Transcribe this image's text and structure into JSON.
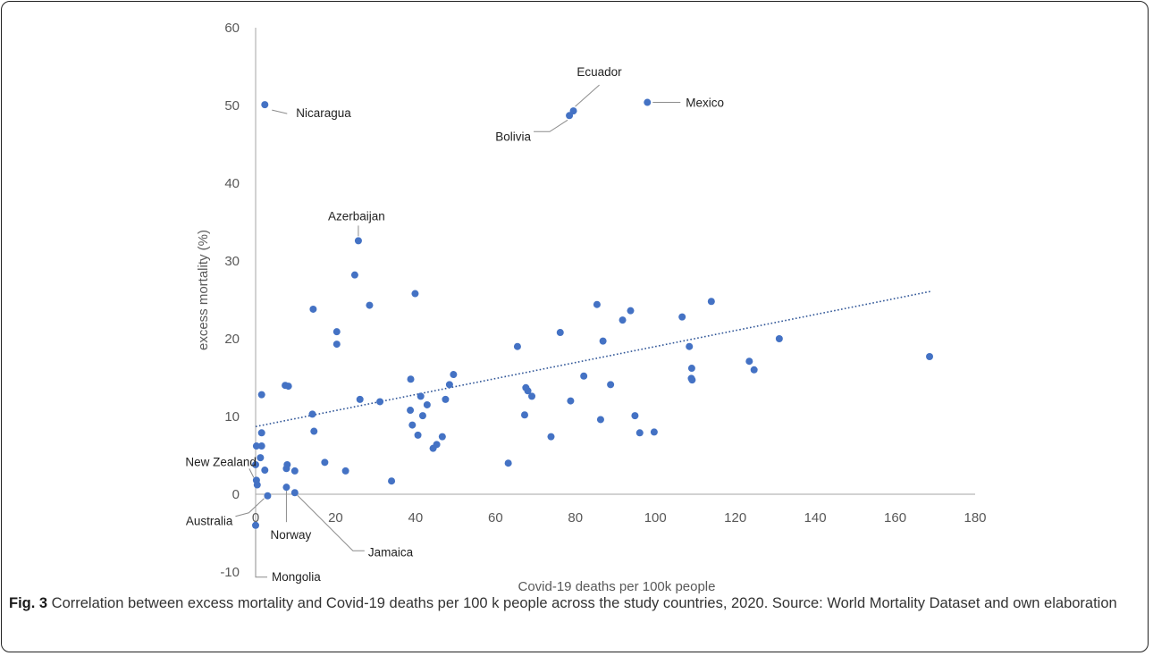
{
  "chart_data": {
    "type": "scatter",
    "title": "",
    "xlabel": "Covid-19 deaths per 100k people",
    "ylabel": "excess mortality (%)",
    "xlim": [
      0,
      180
    ],
    "ylim": [
      -10,
      60
    ],
    "x_ticks": [
      "0",
      "20",
      "40",
      "60",
      "80",
      "100",
      "120",
      "140",
      "160",
      "180"
    ],
    "y_ticks": [
      "-10",
      "0",
      "10",
      "20",
      "30",
      "40",
      "50",
      "60"
    ],
    "grid": false,
    "point_color": "#4472c4",
    "trendline": {
      "style": "dotted",
      "x": [
        0,
        169
      ],
      "y": [
        8.7,
        26.1
      ],
      "color": "#2f5597"
    },
    "points": [
      {
        "x": 2.3,
        "y": 50.1,
        "label": "Nicaragua"
      },
      {
        "x": 78.5,
        "y": 48.7,
        "label": "Bolivia"
      },
      {
        "x": 79.5,
        "y": 49.3,
        "label": "Ecuador"
      },
      {
        "x": 98.0,
        "y": 50.4,
        "label": "Mexico"
      },
      {
        "x": 25.7,
        "y": 32.6,
        "label": "Azerbaijan"
      },
      {
        "x": 24.8,
        "y": 28.2
      },
      {
        "x": 28.5,
        "y": 24.3
      },
      {
        "x": 39.9,
        "y": 25.8
      },
      {
        "x": 14.4,
        "y": 23.8
      },
      {
        "x": 20.3,
        "y": 20.9
      },
      {
        "x": 20.3,
        "y": 19.3
      },
      {
        "x": 1.5,
        "y": 12.8
      },
      {
        "x": 7.4,
        "y": 14.0
      },
      {
        "x": 8.2,
        "y": 13.9
      },
      {
        "x": 14.2,
        "y": 10.3
      },
      {
        "x": 14.6,
        "y": 8.1
      },
      {
        "x": 26.1,
        "y": 12.2
      },
      {
        "x": 31.1,
        "y": 11.9
      },
      {
        "x": 38.8,
        "y": 14.8
      },
      {
        "x": 38.7,
        "y": 10.8
      },
      {
        "x": 39.2,
        "y": 8.9
      },
      {
        "x": 40.6,
        "y": 7.6
      },
      {
        "x": 41.3,
        "y": 12.6
      },
      {
        "x": 41.8,
        "y": 10.1
      },
      {
        "x": 42.9,
        "y": 11.5
      },
      {
        "x": 44.4,
        "y": 5.9
      },
      {
        "x": 45.3,
        "y": 6.4
      },
      {
        "x": 46.7,
        "y": 7.4
      },
      {
        "x": 47.5,
        "y": 12.2
      },
      {
        "x": 48.5,
        "y": 14.1
      },
      {
        "x": 49.5,
        "y": 15.4
      },
      {
        "x": 17.3,
        "y": 4.1
      },
      {
        "x": 22.5,
        "y": 3.0
      },
      {
        "x": 34.0,
        "y": 1.7
      },
      {
        "x": 7.7,
        "y": 3.3
      },
      {
        "x": 7.9,
        "y": 3.8
      },
      {
        "x": 9.8,
        "y": 3.0
      },
      {
        "x": 7.7,
        "y": 0.9,
        "label": "Norway"
      },
      {
        "x": 9.8,
        "y": 0.2,
        "label": "Jamaica"
      },
      {
        "x": 0.2,
        "y": 6.2
      },
      {
        "x": 1.5,
        "y": 7.9
      },
      {
        "x": 1.5,
        "y": 6.2
      },
      {
        "x": 1.2,
        "y": 4.7
      },
      {
        "x": 0.0,
        "y": 3.8
      },
      {
        "x": 2.3,
        "y": 3.1
      },
      {
        "x": 0.2,
        "y": 1.8,
        "label": "New Zealand"
      },
      {
        "x": 0.4,
        "y": 1.2
      },
      {
        "x": 3.0,
        "y": -0.2,
        "label": "Australia"
      },
      {
        "x": 0.0,
        "y": -4.0,
        "label": "Mongolia"
      },
      {
        "x": 63.2,
        "y": 4.0
      },
      {
        "x": 65.5,
        "y": 19.0
      },
      {
        "x": 67.3,
        "y": 10.2
      },
      {
        "x": 67.6,
        "y": 13.7
      },
      {
        "x": 68.1,
        "y": 13.3
      },
      {
        "x": 69.1,
        "y": 12.6
      },
      {
        "x": 73.9,
        "y": 7.4
      },
      {
        "x": 76.2,
        "y": 20.8
      },
      {
        "x": 78.8,
        "y": 12.0
      },
      {
        "x": 82.1,
        "y": 15.2
      },
      {
        "x": 85.4,
        "y": 24.4
      },
      {
        "x": 86.3,
        "y": 9.6
      },
      {
        "x": 86.9,
        "y": 19.7
      },
      {
        "x": 88.8,
        "y": 14.1
      },
      {
        "x": 91.8,
        "y": 22.4
      },
      {
        "x": 93.8,
        "y": 23.6
      },
      {
        "x": 94.9,
        "y": 10.1
      },
      {
        "x": 96.1,
        "y": 7.9
      },
      {
        "x": 99.7,
        "y": 8.0
      },
      {
        "x": 106.7,
        "y": 22.8
      },
      {
        "x": 108.5,
        "y": 19.0
      },
      {
        "x": 109.1,
        "y": 16.2
      },
      {
        "x": 109.0,
        "y": 14.9
      },
      {
        "x": 109.2,
        "y": 14.7
      },
      {
        "x": 114.0,
        "y": 24.8
      },
      {
        "x": 123.5,
        "y": 17.1
      },
      {
        "x": 124.7,
        "y": 16.0
      },
      {
        "x": 131.0,
        "y": 20.0
      },
      {
        "x": 168.6,
        "y": 17.7
      }
    ]
  },
  "caption": {
    "label": "Fig. 3",
    "text": " Correlation between excess mortality and Covid-19 deaths per 100 k people across the study countries, 2020. Source: World Mortality Dataset and own elaboration"
  }
}
